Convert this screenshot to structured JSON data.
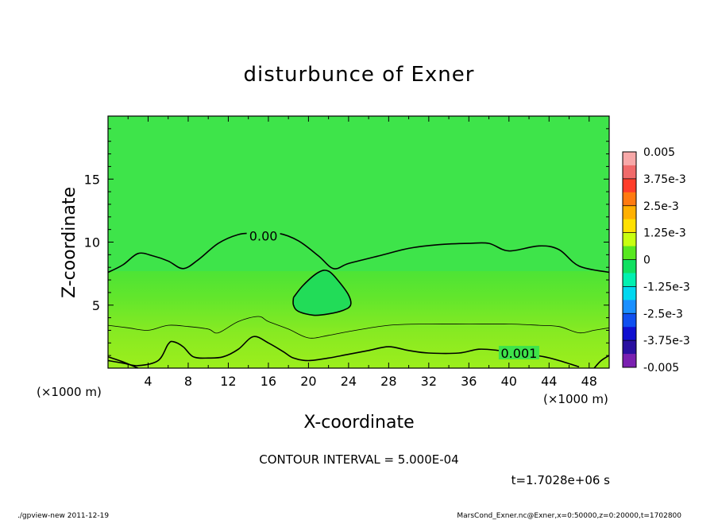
{
  "chart_data": {
    "type": "contour",
    "title": "disturbunce of Exner",
    "xlabel": "X-coordinate",
    "ylabel": "Z-coordinate",
    "x_unit": "(×1000 m)",
    "y_unit": "(×1000 m)",
    "xlim": [
      0,
      50
    ],
    "ylim": [
      0,
      20
    ],
    "x_ticks": [
      4,
      8,
      12,
      16,
      20,
      24,
      28,
      32,
      36,
      40,
      44,
      48
    ],
    "y_ticks": [
      5,
      10,
      15
    ],
    "contour_labels": [
      {
        "text": "0.00",
        "x": 15.5,
        "y": 10.5
      },
      {
        "text": "0.001",
        "x": 41,
        "y": 1.2
      }
    ],
    "contour_zero": [
      [
        0,
        7.6
      ],
      [
        1.5,
        8.2
      ],
      [
        3,
        9.1
      ],
      [
        4.5,
        8.9
      ],
      [
        6,
        8.5
      ],
      [
        7.5,
        7.9
      ],
      [
        9,
        8.6
      ],
      [
        11,
        9.9
      ],
      [
        13,
        10.6
      ],
      [
        14.5,
        10.7
      ],
      [
        17,
        10.7
      ],
      [
        19,
        10.1
      ],
      [
        21,
        8.9
      ],
      [
        22.5,
        7.9
      ],
      [
        24,
        8.3
      ],
      [
        27,
        8.9
      ],
      [
        30,
        9.5
      ],
      [
        33,
        9.8
      ],
      [
        36,
        9.9
      ],
      [
        38,
        9.9
      ],
      [
        40,
        9.3
      ],
      [
        43,
        9.7
      ],
      [
        45,
        9.4
      ],
      [
        47,
        8.1
      ],
      [
        50,
        7.6
      ]
    ],
    "contour_bubble": [
      [
        18.5,
        5.6
      ],
      [
        19.5,
        6.6
      ],
      [
        21,
        7.6
      ],
      [
        22,
        7.7
      ],
      [
        23,
        6.9
      ],
      [
        24,
        5.8
      ],
      [
        24.2,
        5.0
      ],
      [
        23.5,
        4.6
      ],
      [
        22,
        4.3
      ],
      [
        20.5,
        4.2
      ],
      [
        19,
        4.5
      ],
      [
        18.5,
        5.0
      ],
      [
        18.5,
        5.6
      ]
    ],
    "contour_mid": [
      [
        0,
        3.4
      ],
      [
        2,
        3.2
      ],
      [
        4,
        3.0
      ],
      [
        6,
        3.4
      ],
      [
        8,
        3.3
      ],
      [
        10,
        3.1
      ],
      [
        11,
        2.8
      ],
      [
        13,
        3.7
      ],
      [
        15,
        4.1
      ],
      [
        16,
        3.7
      ],
      [
        18,
        3.1
      ],
      [
        20,
        2.4
      ],
      [
        22,
        2.6
      ],
      [
        24,
        2.9
      ],
      [
        28,
        3.4
      ],
      [
        32,
        3.5
      ],
      [
        36,
        3.5
      ],
      [
        40,
        3.5
      ],
      [
        43,
        3.4
      ],
      [
        45,
        3.3
      ],
      [
        47,
        2.8
      ],
      [
        48.5,
        3.0
      ],
      [
        50,
        3.2
      ]
    ],
    "contour_low": [
      [
        0,
        0.6
      ],
      [
        1.5,
        0.4
      ],
      [
        3,
        0.2
      ],
      [
        5,
        0.6
      ],
      [
        6,
        1.9
      ],
      [
        6.5,
        2.1
      ],
      [
        7.5,
        1.7
      ],
      [
        8.5,
        0.9
      ],
      [
        10,
        0.8
      ],
      [
        11.5,
        0.9
      ],
      [
        13,
        1.5
      ],
      [
        14.5,
        2.5
      ],
      [
        16,
        2.0
      ],
      [
        17.5,
        1.3
      ],
      [
        18.5,
        0.8
      ],
      [
        20,
        0.6
      ],
      [
        22,
        0.8
      ],
      [
        24,
        1.1
      ],
      [
        26,
        1.4
      ],
      [
        28,
        1.7
      ],
      [
        30,
        1.4
      ],
      [
        32,
        1.2
      ],
      [
        35,
        1.2
      ],
      [
        37,
        1.5
      ],
      [
        39,
        1.4
      ],
      [
        41,
        1.2
      ],
      [
        43.5,
        0.9
      ],
      [
        45,
        0.6
      ],
      [
        47,
        0.1
      ]
    ],
    "contour_corner": [
      [
        48.5,
        0
      ],
      [
        49.2,
        0.6
      ],
      [
        50,
        1.0
      ]
    ],
    "contour_lowleft": [
      [
        0,
        0.9
      ],
      [
        1.5,
        0.5
      ],
      [
        3,
        0
      ]
    ],
    "colorbar": {
      "labels": [
        "0.005",
        "3.75e-3",
        "2.5e-3",
        "1.25e-3",
        "0",
        "-1.25e-3",
        "-2.5e-3",
        "-3.75e-3",
        "-0.005"
      ],
      "colors": [
        "#f7a8a8",
        "#f06a6a",
        "#ff3d2a",
        "#ff7a10",
        "#ffb000",
        "#ffe000",
        "#c8ff10",
        "#58e820",
        "#10e060",
        "#00f0b0",
        "#00d8f0",
        "#1a90ff",
        "#1050f0",
        "#1010d0",
        "#2a10a0",
        "#7a20b0"
      ]
    },
    "contour_interval": "CONTOUR INTERVAL = 5.000E-04",
    "time_label": "t=1.7028e+06 s"
  },
  "footer": {
    "left": "./gpview-new   2011-12-19",
    "right": "MarsCond_Exner.nc@Exner,x=0:50000,z=0:20000,t=1702800"
  }
}
